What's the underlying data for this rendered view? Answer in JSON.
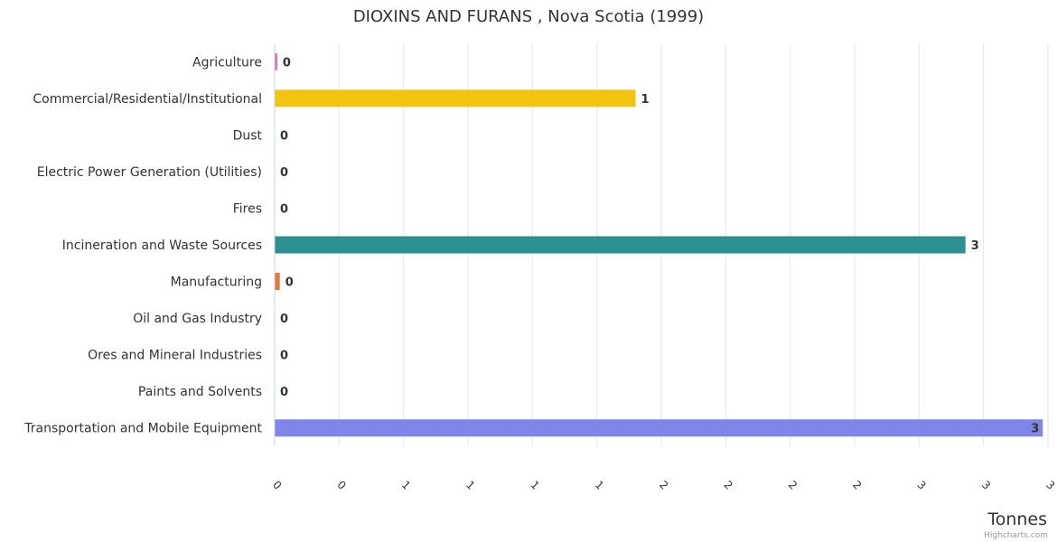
{
  "chart_data": {
    "type": "bar",
    "orientation": "horizontal",
    "title": "DIOXINS AND FURANS , Nova Scotia (1999)",
    "categories": [
      "Agriculture",
      "Commercial/Residential/Institutional",
      "Dust",
      "Electric Power Generation (Utilities)",
      "Fires",
      "Incineration and Waste Sources",
      "Manufacturing",
      "Oil and Gas Industry",
      "Ores and Mineral Industries",
      "Paints and Solvents",
      "Transportation and Mobile Equipment"
    ],
    "values": [
      0.01,
      1.4,
      0,
      0,
      0,
      2.68,
      0.02,
      0,
      0,
      0,
      2.98
    ],
    "data_labels": [
      "0",
      "1",
      "0",
      "0",
      "0",
      "3",
      "0",
      "0",
      "0",
      "0",
      "3"
    ],
    "colors": [
      "#e06c9f",
      "#f2c40f",
      "#2f6b9a",
      "#5f3a8f",
      "#c0392b",
      "#2c9090",
      "#e07b39",
      "#6b8e23",
      "#8b5e3c",
      "#999999",
      "#8085e9"
    ],
    "xlabel": "Tonnes",
    "ylabel": "",
    "xlim": [
      0,
      3
    ],
    "x_ticks": [
      "0",
      "0",
      "1",
      "1",
      "1",
      "1",
      "2",
      "2",
      "2",
      "2",
      "3",
      "3",
      "3"
    ],
    "grid": true,
    "legend": "none"
  },
  "credits": "Highcharts.com"
}
